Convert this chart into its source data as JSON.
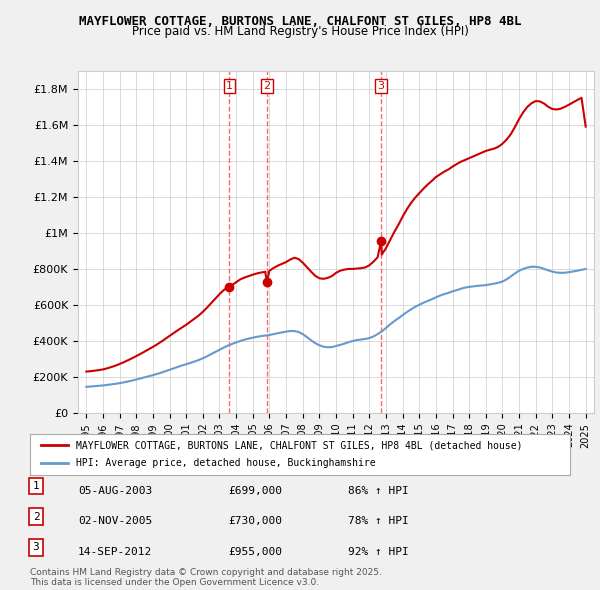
{
  "title": "MAYFLOWER COTTAGE, BURTONS LANE, CHALFONT ST GILES, HP8 4BL",
  "subtitle": "Price paid vs. HM Land Registry's House Price Index (HPI)",
  "legend_label_red": "MAYFLOWER COTTAGE, BURTONS LANE, CHALFONT ST GILES, HP8 4BL (detached house)",
  "legend_label_blue": "HPI: Average price, detached house, Buckinghamshire",
  "footer1": "Contains HM Land Registry data © Crown copyright and database right 2025.",
  "footer2": "This data is licensed under the Open Government Licence v3.0.",
  "sales": [
    {
      "num": 1,
      "date": "05-AUG-2003",
      "price": "£699,000",
      "hpi": "86% ↑ HPI",
      "year": 2003.59
    },
    {
      "num": 2,
      "date": "02-NOV-2005",
      "price": "£730,000",
      "hpi": "78% ↑ HPI",
      "year": 2005.84
    },
    {
      "num": 3,
      "date": "14-SEP-2012",
      "price": "£955,000",
      "hpi": "92% ↑ HPI",
      "year": 2012.71
    }
  ],
  "ylim": [
    0,
    1900000
  ],
  "yticks": [
    0,
    200000,
    400000,
    600000,
    800000,
    1000000,
    1200000,
    1400000,
    1600000,
    1800000
  ],
  "ytick_labels": [
    "£0",
    "£200K",
    "£400K",
    "£600K",
    "£800K",
    "£1M",
    "£1.2M",
    "£1.4M",
    "£1.6M",
    "£1.8M"
  ],
  "xlim": [
    1994.5,
    2025.5
  ],
  "red_color": "#cc0000",
  "blue_color": "#6699cc",
  "marker_color": "#cc0000",
  "vline_color": "#ff6666",
  "bg_color": "#f0f0f0",
  "plot_bg": "#ffffff",
  "red_x": [
    1995.0,
    1995.25,
    1995.5,
    1995.75,
    1996.0,
    1996.25,
    1996.5,
    1996.75,
    1997.0,
    1997.25,
    1997.5,
    1997.75,
    1998.0,
    1998.25,
    1998.5,
    1998.75,
    1999.0,
    1999.25,
    1999.5,
    1999.75,
    2000.0,
    2000.25,
    2000.5,
    2000.75,
    2001.0,
    2001.25,
    2001.5,
    2001.75,
    2002.0,
    2002.25,
    2002.5,
    2002.75,
    2003.0,
    2003.25,
    2003.5,
    2003.75,
    2003.59,
    2004.0,
    2004.25,
    2004.5,
    2004.75,
    2005.0,
    2005.25,
    2005.5,
    2005.75,
    2005.84,
    2006.0,
    2006.25,
    2006.5,
    2006.75,
    2007.0,
    2007.25,
    2007.5,
    2007.75,
    2008.0,
    2008.25,
    2008.5,
    2008.75,
    2009.0,
    2009.25,
    2009.5,
    2009.75,
    2010.0,
    2010.25,
    2010.5,
    2010.75,
    2011.0,
    2011.25,
    2011.5,
    2011.75,
    2012.0,
    2012.25,
    2012.5,
    2012.71,
    2012.75,
    2013.0,
    2013.25,
    2013.5,
    2013.75,
    2014.0,
    2014.25,
    2014.5,
    2014.75,
    2015.0,
    2015.25,
    2015.5,
    2015.75,
    2016.0,
    2016.25,
    2016.5,
    2016.75,
    2017.0,
    2017.25,
    2017.5,
    2017.75,
    2018.0,
    2018.25,
    2018.5,
    2018.75,
    2019.0,
    2019.25,
    2019.5,
    2019.75,
    2020.0,
    2020.25,
    2020.5,
    2020.75,
    2021.0,
    2021.25,
    2021.5,
    2021.75,
    2022.0,
    2022.25,
    2022.5,
    2022.75,
    2023.0,
    2023.25,
    2023.5,
    2023.75,
    2024.0,
    2024.25,
    2024.5,
    2024.75,
    2025.0
  ],
  "red_y": [
    230000,
    232000,
    235000,
    238000,
    242000,
    248000,
    255000,
    263000,
    272000,
    282000,
    293000,
    304000,
    316000,
    328000,
    341000,
    354000,
    367000,
    381000,
    396000,
    412000,
    428000,
    444000,
    460000,
    475000,
    490000,
    507000,
    524000,
    541000,
    562000,
    585000,
    610000,
    635000,
    660000,
    682000,
    699000,
    712000,
    699000,
    726000,
    742000,
    752000,
    760000,
    768000,
    775000,
    780000,
    784000,
    730000,
    790000,
    805000,
    818000,
    828000,
    838000,
    852000,
    862000,
    855000,
    835000,
    810000,
    785000,
    762000,
    748000,
    745000,
    750000,
    760000,
    778000,
    790000,
    796000,
    800000,
    800000,
    802000,
    804000,
    808000,
    820000,
    840000,
    865000,
    955000,
    880000,
    915000,
    960000,
    1005000,
    1045000,
    1090000,
    1130000,
    1165000,
    1195000,
    1220000,
    1245000,
    1268000,
    1288000,
    1310000,
    1325000,
    1340000,
    1352000,
    1368000,
    1382000,
    1395000,
    1405000,
    1415000,
    1425000,
    1435000,
    1445000,
    1455000,
    1462000,
    1468000,
    1478000,
    1495000,
    1518000,
    1548000,
    1588000,
    1632000,
    1670000,
    1700000,
    1720000,
    1732000,
    1730000,
    1718000,
    1700000,
    1688000,
    1685000,
    1690000,
    1700000,
    1712000,
    1725000,
    1738000,
    1750000,
    1590000
  ],
  "blue_x": [
    1995.0,
    1995.25,
    1995.5,
    1995.75,
    1996.0,
    1996.25,
    1996.5,
    1996.75,
    1997.0,
    1997.25,
    1997.5,
    1997.75,
    1998.0,
    1998.25,
    1998.5,
    1998.75,
    1999.0,
    1999.25,
    1999.5,
    1999.75,
    2000.0,
    2000.25,
    2000.5,
    2000.75,
    2001.0,
    2001.25,
    2001.5,
    2001.75,
    2002.0,
    2002.25,
    2002.5,
    2002.75,
    2003.0,
    2003.25,
    2003.5,
    2003.75,
    2004.0,
    2004.25,
    2004.5,
    2004.75,
    2005.0,
    2005.25,
    2005.5,
    2005.75,
    2006.0,
    2006.25,
    2006.5,
    2006.75,
    2007.0,
    2007.25,
    2007.5,
    2007.75,
    2008.0,
    2008.25,
    2008.5,
    2008.75,
    2009.0,
    2009.25,
    2009.5,
    2009.75,
    2010.0,
    2010.25,
    2010.5,
    2010.75,
    2011.0,
    2011.25,
    2011.5,
    2011.75,
    2012.0,
    2012.25,
    2012.5,
    2012.75,
    2013.0,
    2013.25,
    2013.5,
    2013.75,
    2014.0,
    2014.25,
    2014.5,
    2014.75,
    2015.0,
    2015.25,
    2015.5,
    2015.75,
    2016.0,
    2016.25,
    2016.5,
    2016.75,
    2017.0,
    2017.25,
    2017.5,
    2017.75,
    2018.0,
    2018.25,
    2018.5,
    2018.75,
    2019.0,
    2019.25,
    2019.5,
    2019.75,
    2020.0,
    2020.25,
    2020.5,
    2020.75,
    2021.0,
    2021.25,
    2021.5,
    2021.75,
    2022.0,
    2022.25,
    2022.5,
    2022.75,
    2023.0,
    2023.25,
    2023.5,
    2023.75,
    2024.0,
    2024.25,
    2024.5,
    2024.75,
    2025.0
  ],
  "blue_y": [
    145000,
    147000,
    149000,
    151000,
    153000,
    156000,
    159000,
    162000,
    166000,
    170000,
    175000,
    180000,
    186000,
    192000,
    198000,
    204000,
    210000,
    217000,
    224000,
    232000,
    240000,
    248000,
    256000,
    264000,
    271000,
    278000,
    286000,
    294000,
    304000,
    315000,
    327000,
    339000,
    351000,
    363000,
    374000,
    383000,
    392000,
    400000,
    407000,
    413000,
    418000,
    423000,
    427000,
    430000,
    433000,
    438000,
    443000,
    447000,
    452000,
    455000,
    455000,
    450000,
    438000,
    422000,
    404000,
    388000,
    376000,
    368000,
    365000,
    366000,
    372000,
    378000,
    385000,
    393000,
    400000,
    405000,
    408000,
    411000,
    416000,
    425000,
    438000,
    453000,
    472000,
    492000,
    510000,
    526000,
    543000,
    560000,
    575000,
    589000,
    601000,
    612000,
    622000,
    631000,
    642000,
    652000,
    660000,
    667000,
    675000,
    682000,
    690000,
    696000,
    700000,
    703000,
    706000,
    708000,
    710000,
    714000,
    718000,
    723000,
    730000,
    742000,
    758000,
    775000,
    790000,
    800000,
    808000,
    812000,
    812000,
    808000,
    800000,
    792000,
    785000,
    780000,
    778000,
    779000,
    782000,
    786000,
    790000,
    795000,
    800000
  ]
}
